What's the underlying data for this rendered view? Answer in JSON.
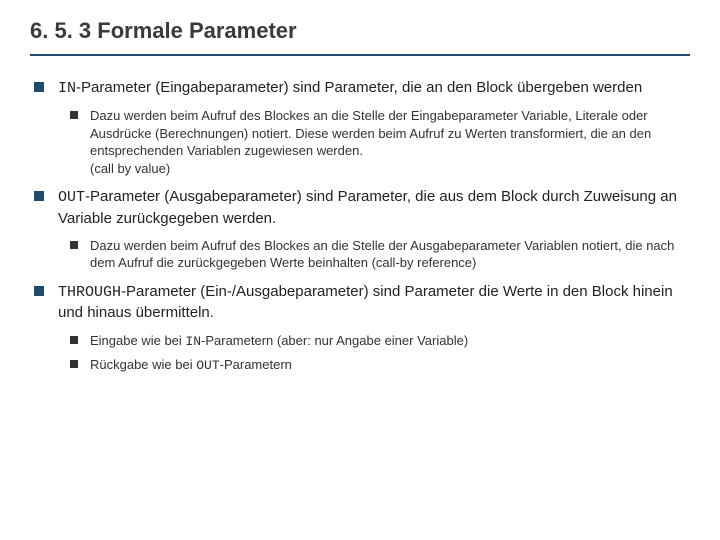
{
  "title": "6. 5. 3  Formale Parameter",
  "colors": {
    "accent": "#1e4a6d",
    "text": "#333333",
    "background": "#ffffff"
  },
  "typography": {
    "title_fontsize": 22,
    "l1_fontsize": 15,
    "l2_fontsize": 13,
    "font_family": "Arial",
    "mono_family": "Courier New"
  },
  "items": [
    {
      "code": "IN",
      "main": "-Parameter (Eingabeparameter) sind Parameter, die an den Block übergeben werden",
      "subs": [
        "Dazu werden beim Aufruf des Blockes an die Stelle der Eingabeparameter Variable, Literale oder Ausdrücke (Berechnungen) notiert. Diese werden beim Aufruf zu Werten transformiert, die an den entsprechenden Variablen zugewiesen werden.\n(call by value)"
      ]
    },
    {
      "code": "OUT",
      "main": "-Parameter (Ausgabeparameter) sind Parameter, die aus dem Block durch Zuweisung an Variable zurückgegeben werden.",
      "subs": [
        "Dazu werden beim Aufruf des Blockes an die Stelle der Ausgabeparameter Variablen notiert, die nach dem Aufruf die zurückgegeben Werte beinhalten (call-by reference)"
      ]
    },
    {
      "code": "THROUGH",
      "main": "-Parameter (Ein-/Ausgabeparameter) sind Parameter die Werte in den Block hinein und hinaus übermitteln.",
      "subs": [
        "Eingabe wie bei IN-Parametern (aber: nur Angabe einer Variable)",
        "Rückgabe wie bei OUT-Parametern"
      ]
    }
  ]
}
